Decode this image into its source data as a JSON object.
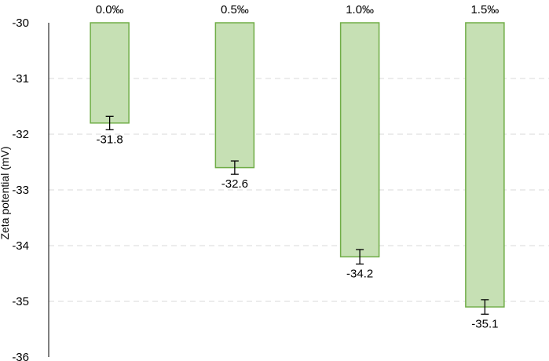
{
  "chart_data": {
    "type": "bar",
    "title": "",
    "xlabel": "",
    "ylabel": "Zeta potential  (mV)",
    "categories": [
      "0.0‰",
      "0.5‰",
      "1.0‰",
      "1.5‰"
    ],
    "values": [
      -31.8,
      -32.6,
      -34.2,
      -35.1
    ],
    "errors": [
      0.12,
      0.12,
      0.13,
      0.13
    ],
    "data_labels": [
      "-31.8",
      "-32.6",
      "-34.2",
      "-35.1"
    ],
    "ylim": [
      -36,
      -30
    ],
    "yticks": [
      -30,
      -31,
      -32,
      -33,
      -34,
      -35,
      -36
    ],
    "ytick_labels": [
      "-30",
      "-31",
      "-32",
      "-33",
      "-34",
      "-35",
      "-36"
    ],
    "bars_hang_from": -30,
    "category_axis_position": "top",
    "grid": "horizontal dashed",
    "legend": "none",
    "colors": {
      "bar_fill": "#c6e0b4",
      "bar_stroke": "#70ad47",
      "grid": "#d9d9d9",
      "axis": "#000000",
      "error_bar": "#000000"
    }
  }
}
